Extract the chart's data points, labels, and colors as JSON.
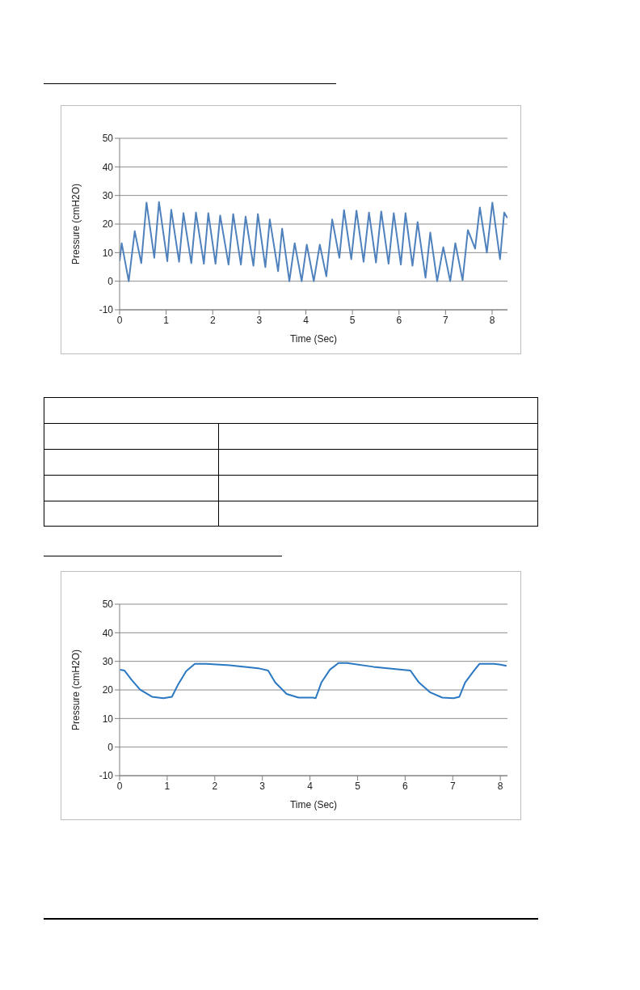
{
  "chart_data": [
    {
      "type": "line",
      "xlabel": "Time (Sec)",
      "ylabel": "Pressure (cmH2O)",
      "xlim": [
        0,
        8.33
      ],
      "xticks": [
        0,
        1,
        2,
        3,
        4,
        5,
        6,
        7,
        8
      ],
      "ylim": [
        -10,
        50
      ],
      "yticks": [
        -10,
        0,
        10,
        20,
        30,
        40,
        50
      ],
      "grid": "y",
      "marker": "none",
      "line_style": "solid",
      "series": [
        {
          "color": "#4f81bd",
          "x": [
            0,
            0.045,
            0.196,
            0.325,
            0.465,
            0.578,
            0.745,
            0.846,
            1.025,
            1.109,
            1.277,
            1.372,
            1.54,
            1.64,
            1.81,
            1.905,
            2.06,
            2.16,
            2.34,
            2.44,
            2.605,
            2.706,
            2.874,
            2.97,
            3.13,
            3.226,
            3.404,
            3.49,
            3.646,
            3.76,
            3.91,
            4.02,
            4.17,
            4.3,
            4.44,
            4.566,
            4.72,
            4.82,
            4.975,
            5.087,
            5.24,
            5.356,
            5.506,
            5.619,
            5.776,
            5.888,
            6.04,
            6.14,
            6.29,
            6.4,
            6.57,
            6.672,
            6.82,
            6.952,
            7.1,
            7.21,
            7.366,
            7.48,
            7.635,
            7.737,
            7.887,
            8.005,
            8.17,
            8.26,
            8.33
          ],
          "values": [
            7,
            13.3,
            0,
            17.5,
            6.3,
            27.5,
            8.2,
            27.7,
            7,
            25,
            6.8,
            23.8,
            6.3,
            24,
            6.1,
            23.8,
            6.1,
            23,
            5.8,
            23.5,
            5.8,
            22.6,
            5.4,
            23.5,
            4.9,
            21.6,
            3.5,
            18.4,
            0,
            13.3,
            0,
            12.8,
            0,
            12.8,
            1.7,
            21.6,
            8.2,
            24.9,
            7.7,
            24.7,
            6.8,
            24,
            6.5,
            24.4,
            6.1,
            23.8,
            5.8,
            23.8,
            5.4,
            20.7,
            1.2,
            17,
            0,
            11.9,
            0,
            13.3,
            0.3,
            17.9,
            11.4,
            25.8,
            10,
            27.5,
            7.7,
            24,
            22.1
          ]
        }
      ]
    },
    {
      "type": "line",
      "xlabel": "Time (Sec)",
      "ylabel": "Pressure (cmH2O)",
      "xlim": [
        0,
        8.15
      ],
      "xticks": [
        0,
        1,
        2,
        3,
        4,
        5,
        6,
        7,
        8
      ],
      "ylim": [
        -10,
        50
      ],
      "yticks": [
        -10,
        0,
        10,
        20,
        30,
        40,
        50
      ],
      "grid": "y",
      "marker": "none",
      "line_style": "solid",
      "series": [
        {
          "color": "#2a78c2",
          "x": [
            0.01,
            0.1,
            0.25,
            0.43,
            0.68,
            0.92,
            1.1,
            1.22,
            1.4,
            1.58,
            1.82,
            2.31,
            2.91,
            3.12,
            3.27,
            3.51,
            3.76,
            4.06,
            4.12,
            4.24,
            4.42,
            4.6,
            4.78,
            5.33,
            5.93,
            6.11,
            6.29,
            6.53,
            6.78,
            7.02,
            7.14,
            7.26,
            7.44,
            7.56,
            7.86,
            7.98,
            8.13
          ],
          "values": [
            27.1,
            26.8,
            23.6,
            20.1,
            17.6,
            17.1,
            17.6,
            21.6,
            26.6,
            29.1,
            29.1,
            28.6,
            27.6,
            26.8,
            22.6,
            18.6,
            17.3,
            17.3,
            17.1,
            22.6,
            27.1,
            29.4,
            29.4,
            28.1,
            27.1,
            26.8,
            22.6,
            19.1,
            17.3,
            17.1,
            17.6,
            22.6,
            26.6,
            29.1,
            29.1,
            28.9,
            28.4
          ]
        }
      ]
    }
  ]
}
